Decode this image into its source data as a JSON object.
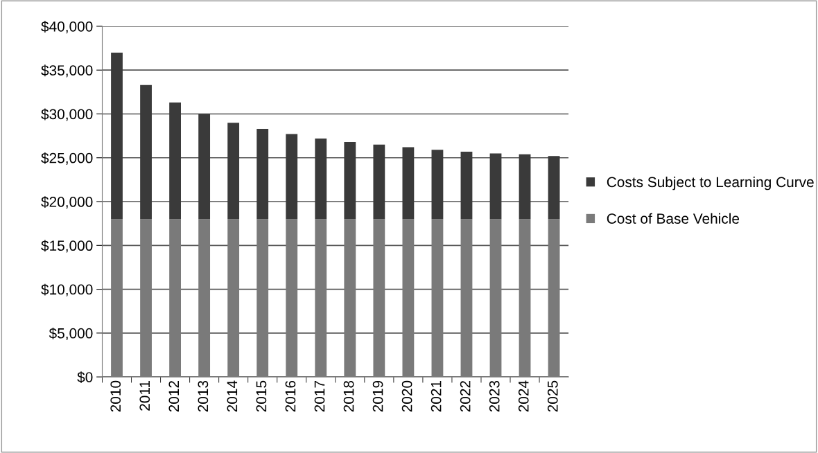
{
  "chart_data": {
    "type": "bar",
    "stacked": true,
    "categories": [
      "2010",
      "2011",
      "2012",
      "2013",
      "2014",
      "2015",
      "2016",
      "2017",
      "2018",
      "2019",
      "2020",
      "2021",
      "2022",
      "2023",
      "2024",
      "2025"
    ],
    "series": [
      {
        "name": "Cost of Base Vehicle",
        "color": "#7a7a7a",
        "values": [
          18000,
          18000,
          18000,
          18000,
          18000,
          18000,
          18000,
          18000,
          18000,
          18000,
          18000,
          18000,
          18000,
          18000,
          18000,
          18000
        ]
      },
      {
        "name": "Costs Subject to Learning Curve",
        "color": "#3a3a3a",
        "values": [
          19000,
          15300,
          13300,
          12000,
          11000,
          10300,
          9700,
          9200,
          8800,
          8500,
          8200,
          7900,
          7700,
          7500,
          7400,
          7200
        ]
      }
    ],
    "ylim": [
      0,
      40000
    ],
    "yticks": [
      {
        "value": 0,
        "label": "$0"
      },
      {
        "value": 5000,
        "label": "$5,000"
      },
      {
        "value": 10000,
        "label": "$10,000"
      },
      {
        "value": 15000,
        "label": "$15,000"
      },
      {
        "value": 20000,
        "label": "$20,000"
      },
      {
        "value": 25000,
        "label": "$25,000"
      },
      {
        "value": 30000,
        "label": "$30,000"
      },
      {
        "value": 35000,
        "label": "$35,000"
      },
      {
        "value": 40000,
        "label": "$40,000"
      }
    ],
    "grid": "y",
    "legend": "right"
  }
}
